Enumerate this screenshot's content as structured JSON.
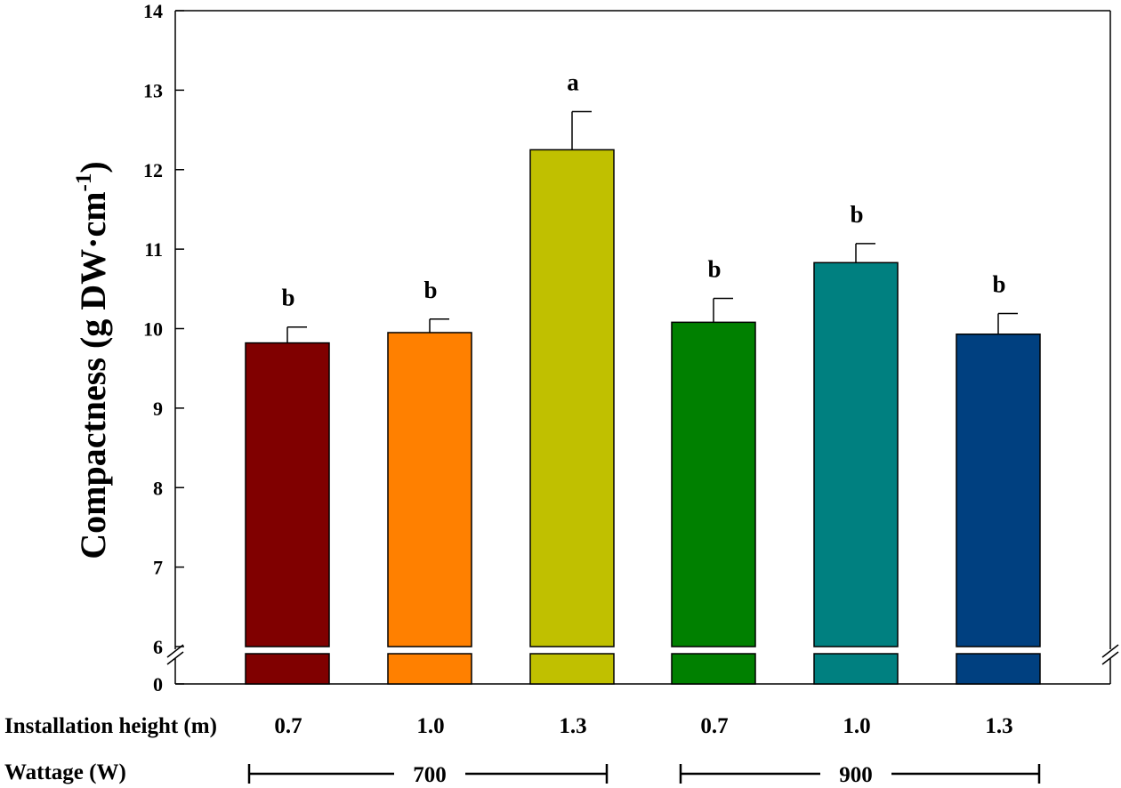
{
  "chart_data": {
    "type": "bar",
    "ylabel_main": "Compactness (g DW·cm",
    "ylabel_sup": "-1",
    "ylabel_close": ")",
    "yticks": [
      "14",
      "13",
      "12",
      "11",
      "10",
      "9",
      "8",
      "7",
      "6",
      "0"
    ],
    "ylim": [
      6,
      14
    ],
    "y_break": {
      "below": 6,
      "floor": 0
    },
    "categories": [
      "0.7",
      "1.0",
      "1.3",
      "0.7",
      "1.0",
      "1.3"
    ],
    "values": [
      9.82,
      9.95,
      12.25,
      10.08,
      10.83,
      9.93
    ],
    "errors": [
      0.2,
      0.17,
      0.48,
      0.3,
      0.24,
      0.26
    ],
    "significance": [
      "b",
      "b",
      "a",
      "b",
      "b",
      "b"
    ],
    "colors": [
      "#800000",
      "#FF8000",
      "#C0C000",
      "#008000",
      "#008080",
      "#004080"
    ],
    "row_labels": {
      "installation_height": "Installation height (m)",
      "wattage": "Wattage (W)"
    },
    "wattage_groups": [
      "700",
      "900"
    ]
  }
}
